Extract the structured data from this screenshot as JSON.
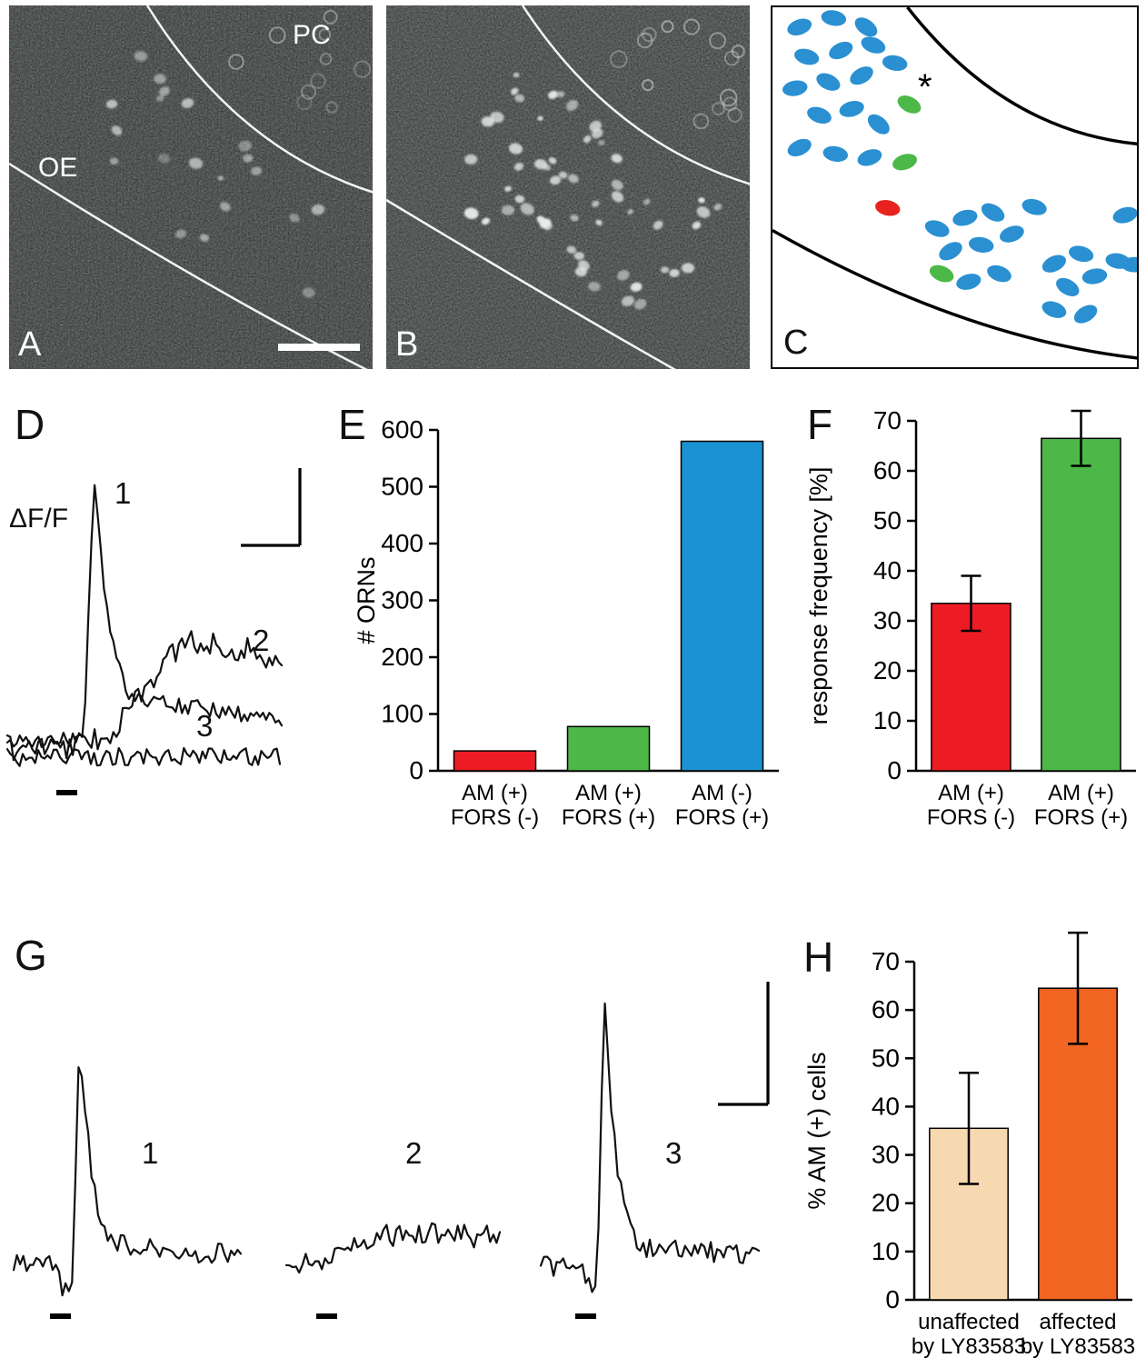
{
  "figure": {
    "type": "multi-panel scientific figure",
    "background": "#ffffff"
  },
  "panels": {
    "A": {
      "label": "A",
      "kind": "fluorescence micrograph, sparse labeled cells",
      "region_labels": {
        "pc": "PC",
        "oe": "OE"
      },
      "base_color": "#393e3d",
      "cell_count": 20,
      "ring_count": 10,
      "has_scale_bar": true
    },
    "B": {
      "label": "B",
      "kind": "fluorescence micrograph, many labeled cells",
      "base_color": "#3c4140",
      "cell_count": 56,
      "ring_count": 14
    },
    "C": {
      "label": "C",
      "kind": "schematic map of labeled neurons",
      "asterisk": "*",
      "colors": {
        "blue": "#2a90d2",
        "green": "#4cb847",
        "red": "#e8231f"
      },
      "cells": {
        "blue": [
          [
            30,
            22,
            -20
          ],
          [
            68,
            12,
            10
          ],
          [
            104,
            22,
            35
          ],
          [
            38,
            55,
            15
          ],
          [
            76,
            48,
            -25
          ],
          [
            112,
            42,
            20
          ],
          [
            25,
            90,
            -10
          ],
          [
            62,
            83,
            25
          ],
          [
            99,
            76,
            -30
          ],
          [
            136,
            62,
            10
          ],
          [
            52,
            120,
            20
          ],
          [
            88,
            113,
            -15
          ],
          [
            118,
            130,
            40
          ],
          [
            30,
            156,
            -25
          ],
          [
            70,
            163,
            10
          ],
          [
            108,
            167,
            -20
          ],
          [
            183,
            246,
            20
          ],
          [
            214,
            234,
            -15
          ],
          [
            245,
            228,
            30
          ],
          [
            198,
            271,
            -30
          ],
          [
            232,
            264,
            10
          ],
          [
            266,
            252,
            -20
          ],
          [
            291,
            222,
            15
          ],
          [
            218,
            305,
            -15
          ],
          [
            252,
            296,
            20
          ],
          [
            313,
            285,
            -25
          ],
          [
            343,
            274,
            15
          ],
          [
            328,
            311,
            30
          ],
          [
            358,
            299,
            -10
          ],
          [
            313,
            336,
            20
          ],
          [
            348,
            341,
            -30
          ],
          [
            384,
            282,
            10
          ],
          [
            402,
            286,
            0
          ],
          [
            392,
            231,
            -15
          ]
        ],
        "green": [
          [
            152,
            108,
            28
          ],
          [
            147,
            172,
            -18
          ],
          [
            188,
            296,
            22
          ]
        ],
        "red": [
          [
            128,
            223,
            12
          ]
        ]
      }
    },
    "D": {
      "label": "D",
      "ylabel": "ΔF/F",
      "trace_labels": [
        "1",
        "2",
        "3"
      ]
    },
    "E": {
      "label": "E"
    },
    "F": {
      "label": "F"
    },
    "G": {
      "label": "G",
      "trace_labels": [
        "1",
        "2",
        "3"
      ]
    },
    "H": {
      "label": "H"
    }
  },
  "chart_data": [
    {
      "id": "E",
      "type": "bar",
      "ylabel": "# ORNs",
      "categories": [
        [
          "AM (+)",
          "FORS (-)"
        ],
        [
          "AM (+)",
          "FORS (+)"
        ],
        [
          "AM (-)",
          "FORS (+)"
        ]
      ],
      "values": [
        35,
        78,
        580
      ],
      "colors": [
        "#ed1c24",
        "#4db848",
        "#1b92d1"
      ],
      "ylim": [
        0,
        600
      ],
      "yticks": [
        0,
        100,
        200,
        300,
        400,
        500,
        600
      ]
    },
    {
      "id": "F",
      "type": "bar",
      "ylabel": "response frequency [%]",
      "categories": [
        [
          "AM (+)",
          "FORS (-)"
        ],
        [
          "AM (+)",
          "FORS (+)"
        ]
      ],
      "values": [
        33.5,
        66.5
      ],
      "errors": [
        5.5,
        5.5
      ],
      "colors": [
        "#ed1c24",
        "#4db848"
      ],
      "ylim": [
        0,
        70
      ],
      "yticks": [
        0,
        10,
        20,
        30,
        40,
        50,
        60,
        70
      ]
    },
    {
      "id": "H",
      "type": "bar",
      "ylabel": "% AM (+) cells",
      "categories": [
        [
          "unaffected",
          "by LY83583"
        ],
        [
          "affected",
          "by LY83583"
        ]
      ],
      "values": [
        35.5,
        64.5
      ],
      "errors": [
        11.5,
        11.5
      ],
      "colors": [
        "#f6d9b0",
        "#f26522"
      ],
      "ylim": [
        0,
        70
      ],
      "yticks": [
        0,
        10,
        20,
        30,
        40,
        50,
        60,
        70
      ]
    },
    {
      "id": "D",
      "type": "line",
      "ylabel": "ΔF/F",
      "traces": [
        {
          "label": "1",
          "kind": "peak",
          "onset": 0.28,
          "rise": 0.035,
          "tau": 0.07,
          "amp": 295,
          "tail": 55,
          "noise": 9,
          "seed": 42
        },
        {
          "label": "2",
          "kind": "bump",
          "on": 0.5,
          "w": 0.07,
          "tau": 1.3,
          "amp": 128,
          "noise": 14,
          "seed": 7
        },
        {
          "label": "3",
          "kind": "flat",
          "amp": 0,
          "noise": 10,
          "seed": 19
        }
      ]
    },
    {
      "id": "G",
      "type": "line",
      "traces": [
        {
          "label": "1",
          "kind": "peak",
          "onset": 0.26,
          "rise": 0.03,
          "tau": 0.06,
          "amp": 255,
          "tail": 26,
          "predip": 24,
          "noise": 12,
          "seed": 3
        },
        {
          "label": "2",
          "kind": "bump",
          "on": 0.3,
          "w": 0.07,
          "tau": 4,
          "amp": 36,
          "noise": 13,
          "seed": 11
        },
        {
          "label": "3",
          "kind": "peak",
          "onset": 0.26,
          "rise": 0.03,
          "tau": 0.06,
          "amp": 315,
          "tail": 28,
          "predip": 24,
          "noise": 13,
          "seed": 27
        }
      ]
    }
  ]
}
